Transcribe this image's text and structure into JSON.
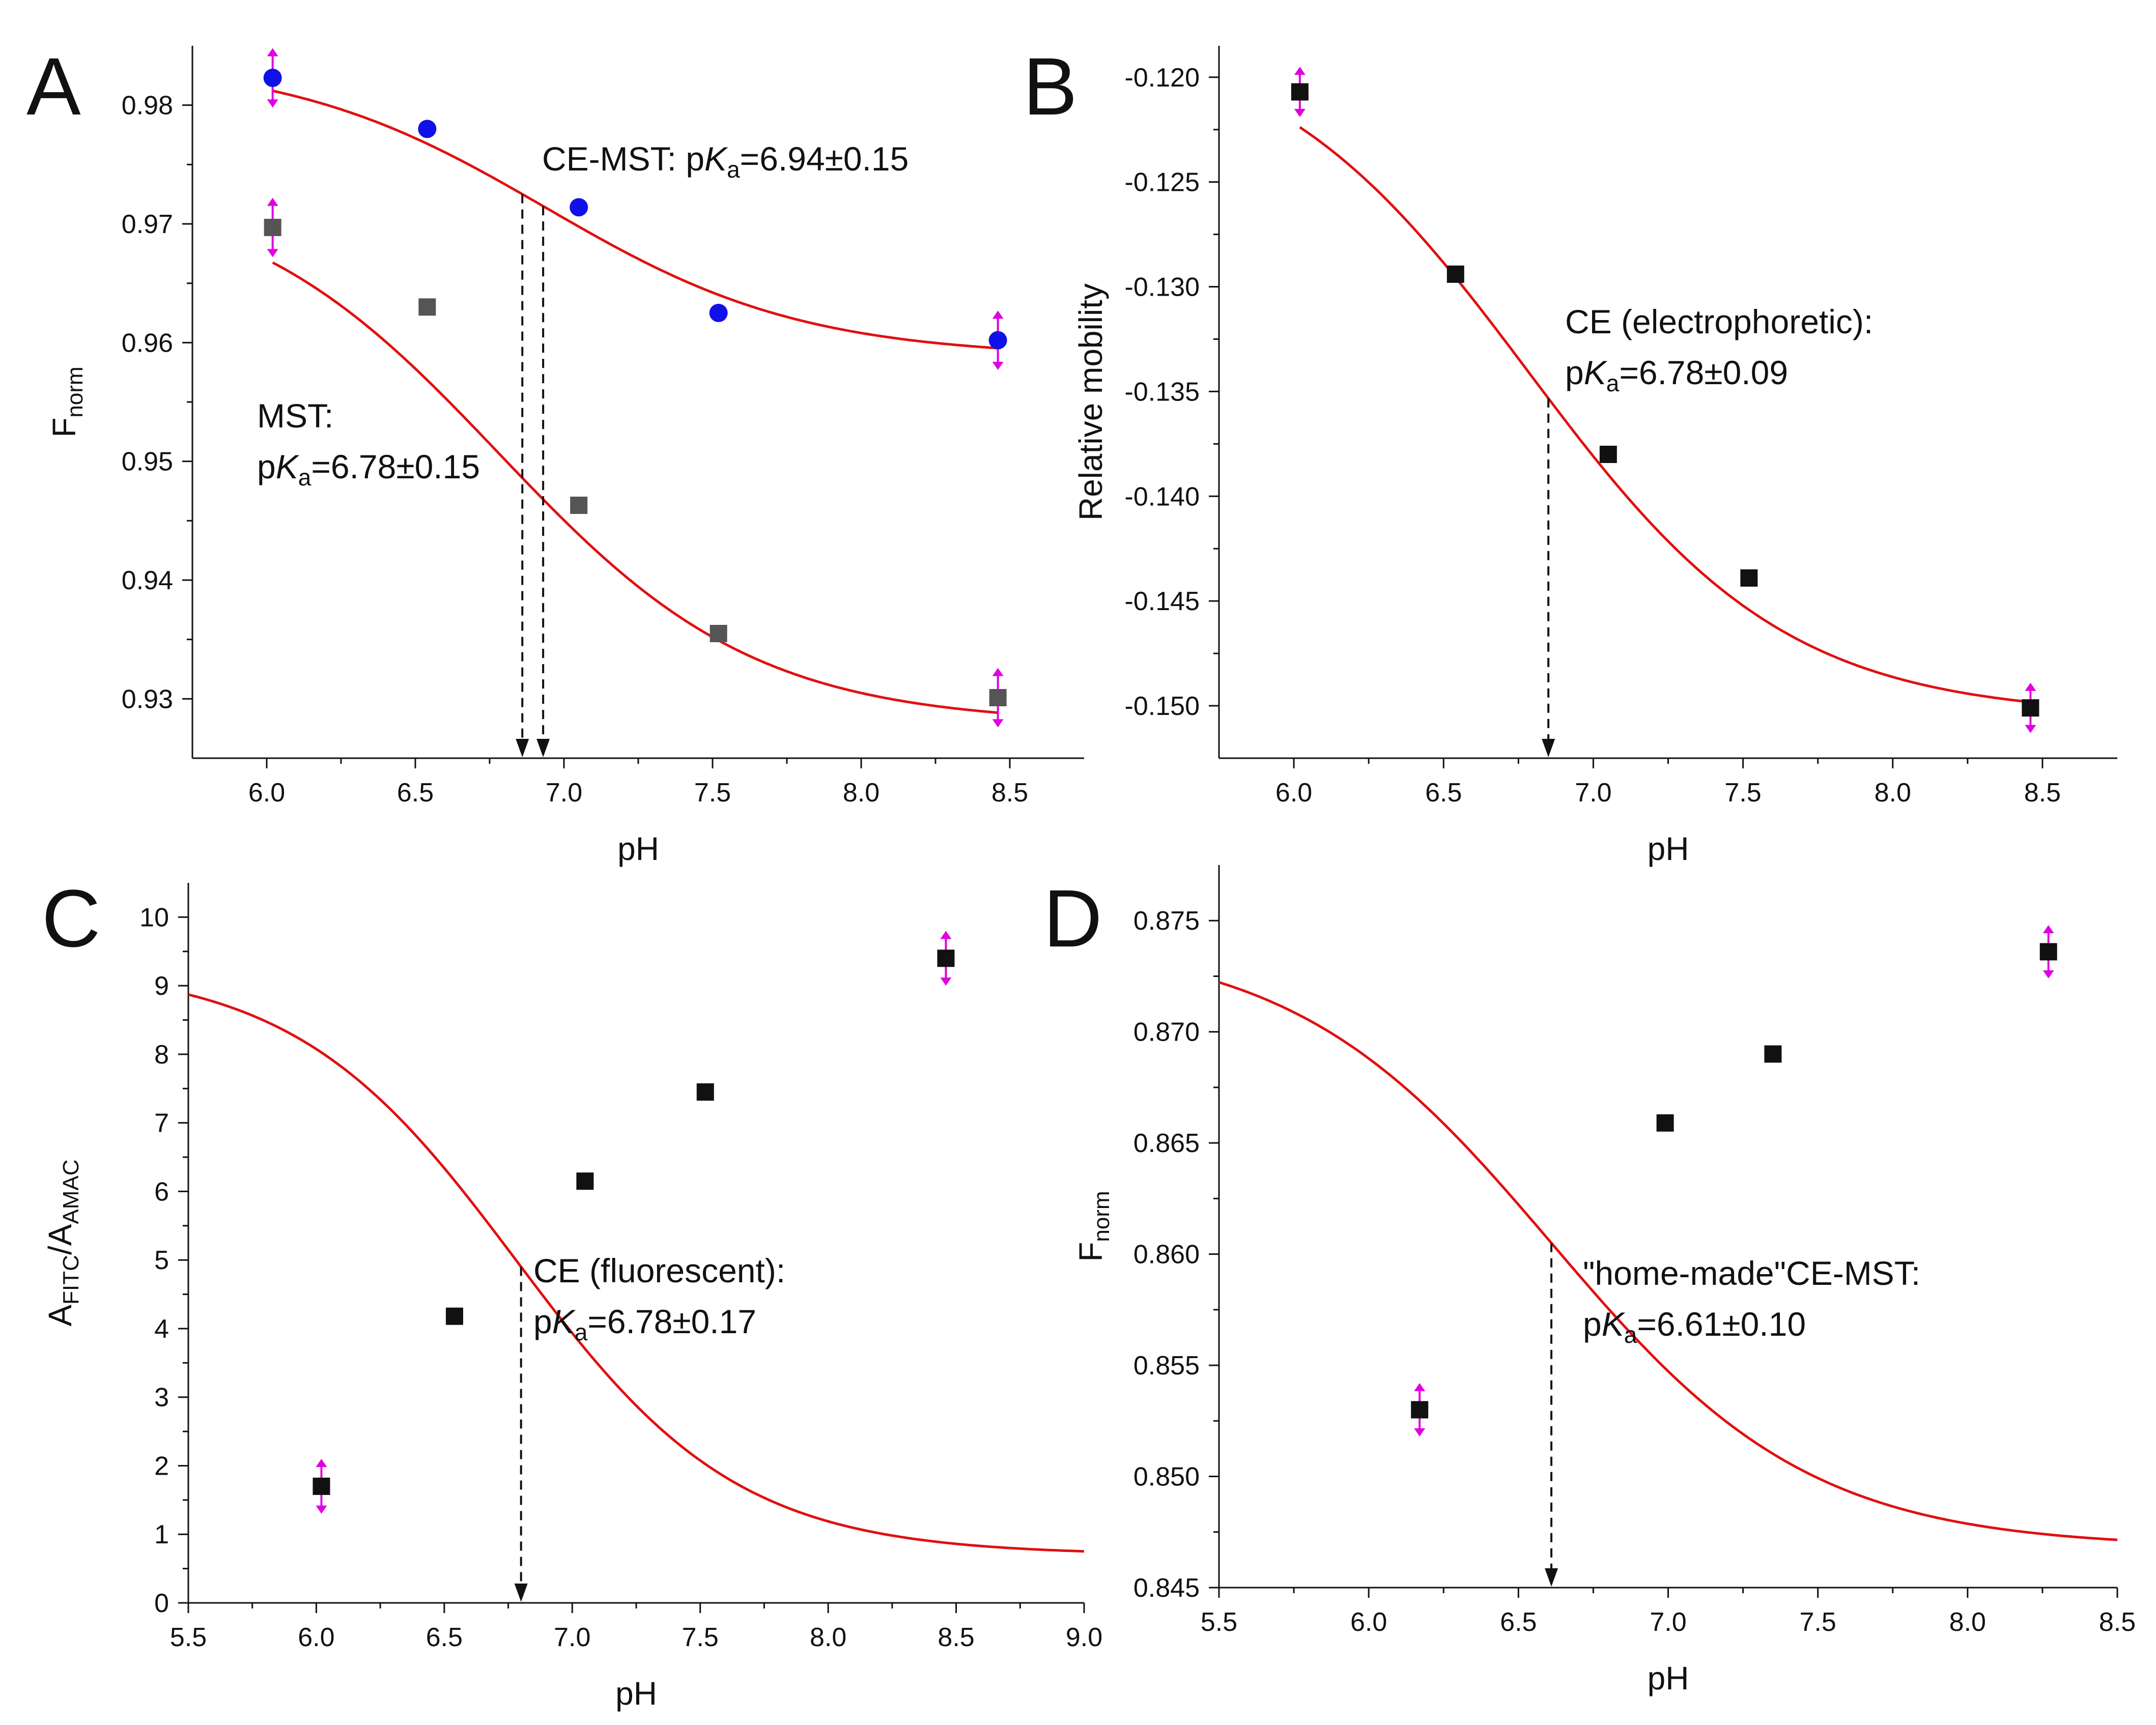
{
  "chart_data": [
    {
      "panel": "A",
      "type": "scatter",
      "xlabel": "pH",
      "ylabel": "F",
      "ylabel_sub": "norm",
      "xlim": [
        5.75,
        8.75
      ],
      "ylim": [
        0.925,
        0.985
      ],
      "xticks": [
        6.0,
        6.5,
        7.0,
        7.5,
        8.0,
        8.5
      ],
      "xtick_labels": [
        "6.0",
        "6.5",
        "7.0",
        "7.5",
        "8.0",
        "8.5"
      ],
      "yticks": [
        0.93,
        0.94,
        0.95,
        0.96,
        0.97,
        0.98
      ],
      "ytick_labels": [
        "0.93",
        "0.94",
        "0.95",
        "0.96",
        "0.97",
        "0.98"
      ],
      "series": [
        {
          "name": "CE-MST",
          "marker": "circle",
          "color": "#1010e8",
          "x": [
            6.02,
            6.54,
            7.05,
            7.52,
            8.46
          ],
          "y": [
            0.9823,
            0.978,
            0.9714,
            0.9625,
            0.9602
          ],
          "err": [
            0.0025,
            null,
            null,
            null,
            0.0025
          ],
          "fit": {
            "pKa": 6.94,
            "high": 0.9839,
            "low": 0.9588,
            "xrange": [
              6.02,
              8.46
            ]
          }
        },
        {
          "name": "MST",
          "marker": "square",
          "color": "#555555",
          "x": [
            6.02,
            6.54,
            7.05,
            7.52,
            8.46
          ],
          "y": [
            0.9697,
            0.963,
            0.9463,
            0.9355,
            0.9301
          ],
          "err": [
            0.0025,
            null,
            null,
            null,
            0.0025
          ],
          "fit": {
            "pKa": 6.78,
            "high": 0.9735,
            "low": 0.9279,
            "xrange": [
              6.02,
              8.46
            ]
          }
        }
      ],
      "markers_x": [
        6.86,
        6.93
      ],
      "annotations": [
        {
          "prefix": "CE-MST: p",
          "k": "K",
          "sub": "a",
          "suffix": "=6.94±0.15"
        },
        {
          "line1": "MST:",
          "prefix": "p",
          "k": "K",
          "sub": "a",
          "suffix": "=6.78±0.15"
        }
      ]
    },
    {
      "panel": "B",
      "type": "scatter",
      "xlabel": "pH",
      "ylabel": "Relative mobility",
      "xlim": [
        5.75,
        8.75
      ],
      "ylim": [
        -0.1525,
        -0.1185
      ],
      "xticks": [
        6.0,
        6.5,
        7.0,
        7.5,
        8.0,
        8.5
      ],
      "xtick_labels": [
        "6.0",
        "6.5",
        "7.0",
        "7.5",
        "8.0",
        "8.5"
      ],
      "yticks": [
        -0.15,
        -0.145,
        -0.14,
        -0.135,
        -0.13,
        -0.125,
        -0.12
      ],
      "ytick_labels": [
        "-0.150",
        "-0.145",
        "-0.140",
        "-0.135",
        "-0.130",
        "-0.125",
        "-0.120"
      ],
      "series": [
        {
          "name": "CE (electrophoretic)",
          "marker": "square",
          "color": "#111111",
          "x": [
            6.02,
            6.54,
            7.05,
            7.52,
            8.46
          ],
          "y": [
            -0.1207,
            -0.1294,
            -0.138,
            -0.1439,
            -0.1501
          ],
          "err": [
            0.0012,
            null,
            null,
            null,
            0.0012
          ],
          "fit": {
            "pKa": 6.78,
            "high": -0.1175,
            "low": -0.1505,
            "xrange": [
              6.02,
              8.46
            ]
          }
        }
      ],
      "markers_x": [
        6.85
      ],
      "annotations": [
        {
          "line1": "CE (electrophoretic):",
          "prefix": "p",
          "k": "K",
          "sub": "a",
          "suffix": "=6.78±0.09"
        }
      ]
    },
    {
      "panel": "C",
      "type": "scatter",
      "xlabel": "pH",
      "ylabel": "A",
      "ylabel_sub1": "FITC",
      "ylabel_mid": "/A",
      "ylabel_sub2": "AMAC",
      "xlim": [
        5.5,
        9.0
      ],
      "ylim": [
        0,
        10.5
      ],
      "xticks": [
        5.5,
        6.0,
        6.5,
        7.0,
        7.5,
        8.0,
        8.5,
        9.0
      ],
      "xtick_labels": [
        "5.5",
        "6.0",
        "6.5",
        "7.0",
        "7.5",
        "8.0",
        "8.5",
        "9.0"
      ],
      "yticks": [
        0,
        1,
        2,
        3,
        4,
        5,
        6,
        7,
        8,
        9,
        10
      ],
      "ytick_labels": [
        "0",
        "1",
        "2",
        "3",
        "4",
        "5",
        "6",
        "7",
        "8",
        "9",
        "10"
      ],
      "series": [
        {
          "name": "CE (fluorescent)",
          "marker": "square",
          "color": "#111111",
          "x": [
            6.02,
            6.54,
            7.05,
            7.52,
            8.46
          ],
          "y": [
            1.7,
            4.18,
            6.15,
            7.45,
            9.4
          ],
          "err": [
            0.4,
            null,
            null,
            null,
            0.4
          ],
          "fit": {
            "pKa": 6.78,
            "high": 9.3,
            "low": 0.7,
            "xrange": [
              5.5,
              9.0
            ]
          }
        }
      ],
      "markers_x": [
        6.8
      ],
      "annotations": [
        {
          "line1": "CE (fluorescent):",
          "prefix": "p",
          "k": "K",
          "sub": "a",
          "suffix": "=6.78±0.17"
        }
      ]
    },
    {
      "panel": "D",
      "type": "scatter",
      "xlabel": "pH",
      "ylabel": "F",
      "ylabel_sub": "norm",
      "xlim": [
        5.5,
        8.5
      ],
      "ylim": [
        0.845,
        0.8775
      ],
      "xticks": [
        5.5,
        6.0,
        6.5,
        7.0,
        7.5,
        8.0,
        8.5
      ],
      "xtick_labels": [
        "5.5",
        "6.0",
        "6.5",
        "7.0",
        "7.5",
        "8.0",
        "8.5"
      ],
      "yticks": [
        0.845,
        0.85,
        0.855,
        0.86,
        0.865,
        0.87,
        0.875
      ],
      "ytick_labels": [
        "0.845",
        "0.850",
        "0.855",
        "0.860",
        "0.865",
        "0.870",
        "0.875"
      ],
      "series": [
        {
          "name": "home-made CE-MST",
          "marker": "square",
          "color": "#111111",
          "x": [
            6.17,
            6.99,
            7.35,
            8.27
          ],
          "y": [
            0.853,
            0.8659,
            0.869,
            0.8736
          ],
          "err": [
            0.0012,
            null,
            null,
            0.0012
          ],
          "fit": {
            "pKa": 6.61,
            "high": 0.8742,
            "low": 0.8468,
            "xrange": [
              5.5,
              8.5
            ]
          }
        }
      ],
      "markers_x": [
        6.61
      ],
      "annotations": [
        {
          "line1": "\"home-made\"CE-MST:",
          "prefix": "p",
          "k": "K",
          "sub": "a",
          "suffix": "=6.61±0.10"
        }
      ]
    }
  ],
  "colors": {
    "fit": "#e01010",
    "error": "#e000e0",
    "axis": "#111111"
  }
}
